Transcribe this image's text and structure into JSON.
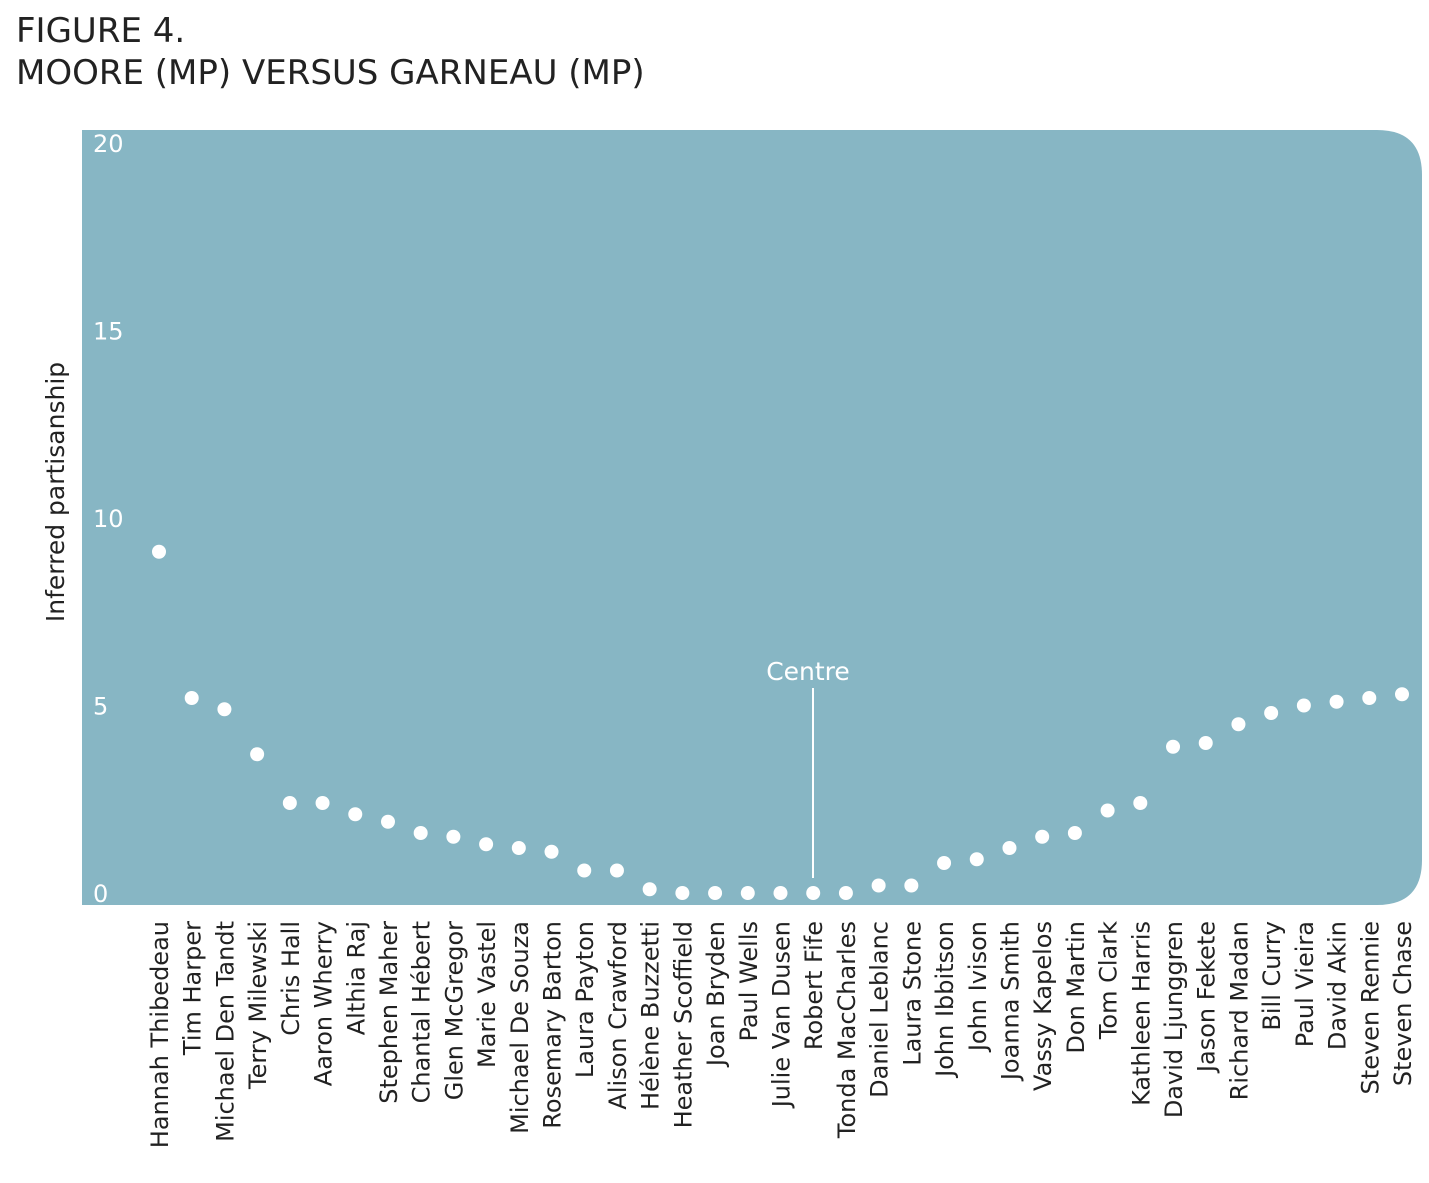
{
  "chart_data": {
    "type": "scatter",
    "title": [
      "FIGURE 4.",
      "MOORE (MP) VERSUS GARNEAU (MP)"
    ],
    "y_label": "Inferred partisanship",
    "annotation": "Centre",
    "background_color": "#87b6c4",
    "color": "#ffffff",
    "categories": [
      "Hannah Thibedeau",
      "Tim Harper",
      "Michael Den Tandt",
      "Terry Milewski",
      "Chris Hall",
      "Aaron Wherry",
      "Althia Raj",
      "Stephen Maher",
      "Chantal Hébert",
      "Glen McGregor",
      "Marie Vastel",
      "Michael De Souza",
      "Rosemary Barton",
      "Laura Payton",
      "Alison Crawford",
      "Hélène Buzzetti",
      "Heather Scoffield",
      "Joan Bryden",
      "Paul Wells",
      "Julie Van Dusen",
      "Robert Fife",
      "Tonda MacCharles",
      "Daniel Leblanc",
      "Laura Stone",
      "John Ibbitson",
      "John Ivison",
      "Joanna Smith",
      "Vassy Kapelos",
      "Don Martin",
      "Tom Clark",
      "Kathleen Harris",
      "David Ljunggren",
      "Jason Fekete",
      "Richard Madan",
      "Bill Curry",
      "Paul Vieira",
      "David Akin",
      "Steven Rennie",
      "Steven Chase"
    ],
    "values": [
      9.1,
      5.2,
      4.9,
      3.7,
      2.4,
      2.4,
      2.1,
      1.9,
      1.6,
      1.5,
      1.3,
      1.2,
      1.1,
      0.6,
      0.6,
      0.1,
      0,
      0,
      0,
      0,
      0,
      0,
      0.2,
      0.2,
      0.8,
      0.9,
      1.2,
      1.5,
      1.6,
      2.2,
      2.4,
      3.9,
      4.0,
      4.5,
      4.8,
      5.0,
      5.1,
      5.2,
      5.3
    ],
    "ylim": [
      0,
      20
    ],
    "yticks": [
      0,
      5,
      10,
      15,
      20
    ]
  }
}
